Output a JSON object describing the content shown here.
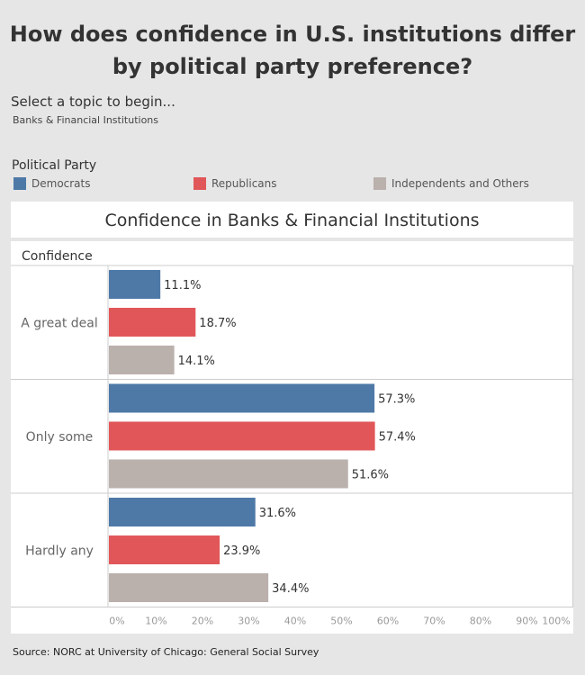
{
  "header": {
    "title": "How does confidence in U.S. institutions differ by political party preference?",
    "select_label": "Select a topic to begin...",
    "select_value": "Banks & Financial Institutions"
  },
  "legend": {
    "title": "Political Party",
    "items": [
      {
        "label": "Democrats",
        "color": "#4e79a7"
      },
      {
        "label": "Republicans",
        "color": "#e15759"
      },
      {
        "label": "Independents and Others",
        "color": "#bab0ac"
      }
    ]
  },
  "chart_data": {
    "type": "bar",
    "orientation": "horizontal",
    "title": "Confidence in Banks & Financial Institutions",
    "row_header": "Confidence",
    "categories": [
      "A great deal",
      "Only some",
      "Hardly any"
    ],
    "series": [
      {
        "name": "Democrats",
        "values": [
          11.1,
          57.3,
          31.6
        ]
      },
      {
        "name": "Republicans",
        "values": [
          18.7,
          57.4,
          23.9
        ]
      },
      {
        "name": "Independents and Others",
        "values": [
          14.1,
          51.6,
          34.4
        ]
      }
    ],
    "xlim": [
      0,
      100
    ],
    "x_ticks": [
      "0%",
      "10%",
      "20%",
      "30%",
      "40%",
      "50%",
      "60%",
      "70%",
      "80%",
      "90%",
      "100%"
    ],
    "grid": false,
    "legend_position": "top"
  },
  "source": "Source: NORC at University of Chicago: General Social Survey"
}
